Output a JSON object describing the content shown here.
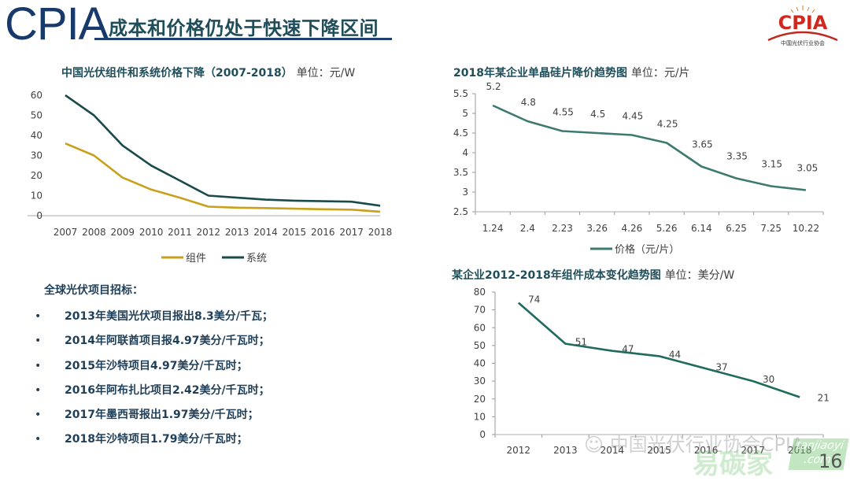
{
  "header": {
    "brand": "CPIA",
    "title": "成本和价格仍处于快速下降区间",
    "logo_text": "CPIA",
    "logo_subtitle": "中国光伏行业协会",
    "colors": {
      "brand": "#173a6b",
      "title": "#1f4e5a",
      "logo": "#d0281e"
    }
  },
  "chart_data": [
    {
      "type": "line",
      "title": "中国光伏组件和系统价格下降（2007-2018）",
      "unit": "单位：元/W",
      "xlabel": "",
      "ylabel": "",
      "x": [
        "2007",
        "2008",
        "2009",
        "2010",
        "2011",
        "2012",
        "2013",
        "2014",
        "2015",
        "2016",
        "2017",
        "2018"
      ],
      "yticks": [
        "0",
        "10",
        "20",
        "30",
        "40",
        "50",
        "60"
      ],
      "ylim": [
        0,
        60
      ],
      "grid": false,
      "legend": "bottom",
      "series": [
        {
          "name": "组件",
          "color": "#c9a01b",
          "values": [
            36,
            30,
            19,
            13,
            9,
            4.5,
            4,
            3.8,
            3.5,
            3.2,
            3,
            2
          ]
        },
        {
          "name": "系统",
          "color": "#1b4a4a",
          "values": [
            60,
            50,
            35,
            25,
            17.5,
            10,
            9,
            8,
            7.5,
            7.2,
            7,
            5
          ]
        }
      ]
    },
    {
      "type": "line",
      "title": "2018年某企业单晶硅片降价趋势图",
      "unit": "单位：元/片",
      "x": [
        "1.24",
        "2.4",
        "2.23",
        "3.26",
        "4.26",
        "5.26",
        "6.14",
        "6.25",
        "7.25",
        "10.22"
      ],
      "yticks": [
        "2.5",
        "3",
        "3.5",
        "4",
        "4.5",
        "5",
        "5.5"
      ],
      "ylim": [
        2.5,
        5.5
      ],
      "grid": false,
      "legend": "bottom",
      "series": [
        {
          "name": "价格（元/片）",
          "color": "#3e7a70",
          "values": [
            5.2,
            4.8,
            4.55,
            4.5,
            4.45,
            4.25,
            3.65,
            3.35,
            3.15,
            3.05
          ],
          "labels": [
            "5.2",
            "4.8",
            "4.55",
            "4.5",
            "4.45",
            "4.25",
            "3.65",
            "3.35",
            "3.15",
            "3.05"
          ]
        }
      ]
    },
    {
      "type": "line",
      "title": "某企业2012-2018年组件成本变化趋势图",
      "unit": "单位：美分/W",
      "x": [
        "2012",
        "2013",
        "2014",
        "2015",
        "2016",
        "2017",
        "2018"
      ],
      "yticks": [
        "0",
        "10",
        "20",
        "30",
        "40",
        "50",
        "60",
        "70",
        "80"
      ],
      "ylim": [
        0,
        80
      ],
      "grid": false,
      "legend": "none",
      "series": [
        {
          "name": "组件成本",
          "color": "#1f6b5e",
          "values": [
            74,
            51,
            47,
            44,
            37,
            30,
            21
          ],
          "labels": [
            "74",
            "51",
            "47",
            "44",
            "37",
            "30",
            "21"
          ]
        }
      ]
    }
  ],
  "bids": {
    "heading": "全球光伏项目招标：",
    "bullet": "•",
    "items": [
      "2013年美国光伏项目报出8.3美分/千瓦；",
      "2014年阿联酋项目报4.97美分/千瓦时；",
      "2015年沙特项目4.97美分/千瓦时；",
      "2016年阿布扎比项目2.42美分/千瓦时；",
      "2017年墨西哥报出1.97美分/千瓦时；",
      "2018年沙特项目1.79美分/千瓦时；"
    ]
  },
  "watermark": {
    "text": "中国光伏行业协会CPIA",
    "site_cn": "易碳家",
    "site_en": "tanjiaoyi .com"
  },
  "page_number": "16"
}
